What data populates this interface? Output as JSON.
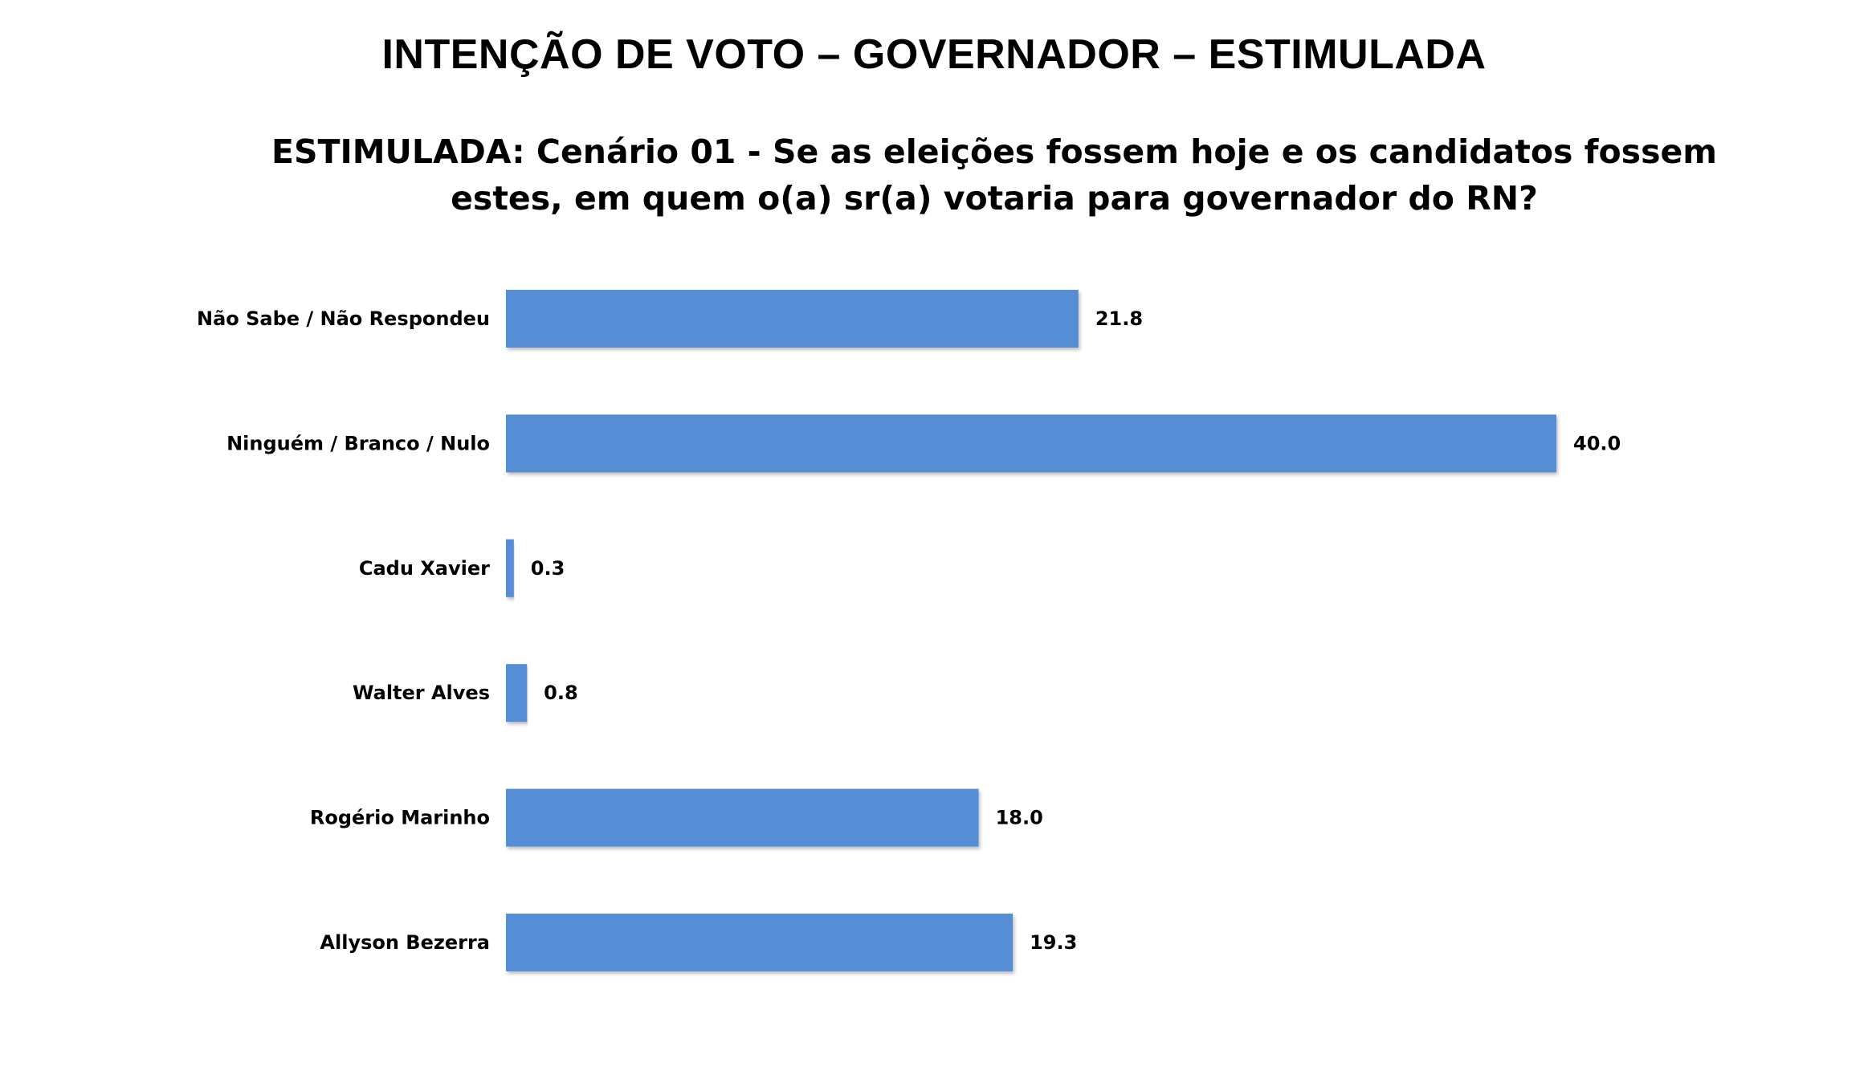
{
  "chart_data": {
    "type": "bar",
    "orientation": "horizontal",
    "title": "INTENÇÃO DE VOTO – GOVERNADOR – ESTIMULADA",
    "subtitle": "ESTIMULADA: Cenário 01 - Se as eleições fossem hoje e os candidatos fossem estes, em quem o(a) sr(a) votaria para governador do RN?",
    "xlabel": "",
    "ylabel": "",
    "xlim": [
      0,
      40
    ],
    "grid": false,
    "legend": "none",
    "bar_color": "#558ED5",
    "categories": [
      "Não Sabe / Não Respondeu",
      "Ninguém / Branco / Nulo",
      "Cadu Xavier",
      "Walter Alves",
      "Rogério Marinho",
      "Allyson Bezerra"
    ],
    "values": [
      21.8,
      40.0,
      0.3,
      0.8,
      18.0,
      19.3
    ],
    "value_labels": [
      "21.8",
      "40.0",
      "0.3",
      "0.8",
      "18.0",
      "19.3"
    ]
  }
}
